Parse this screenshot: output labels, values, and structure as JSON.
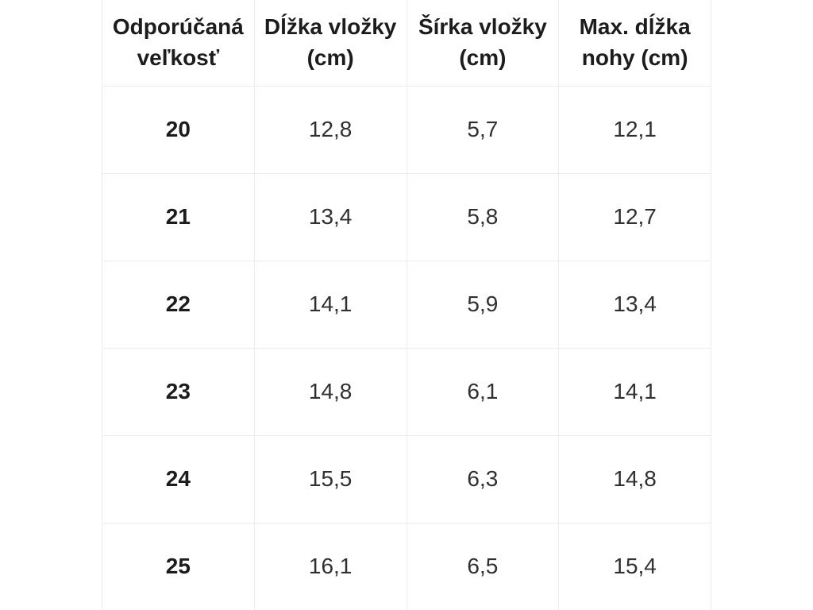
{
  "page": {
    "background": "#ffffff"
  },
  "colors": {
    "border": "#ececec",
    "header_text": "#1c1c1c",
    "cell_text": "#303030",
    "background": "#ffffff"
  },
  "size_chart": {
    "columns": [
      "Odporúčaná veľkosť",
      "Dĺžka vložky (cm)",
      "Šírka vložky (cm)",
      "Max. dĺžka nohy (cm)"
    ],
    "rows": [
      [
        "20",
        "12,8",
        "5,7",
        "12,1"
      ],
      [
        "21",
        "13,4",
        "5,8",
        "12,7"
      ],
      [
        "22",
        "14,1",
        "5,9",
        "13,4"
      ],
      [
        "23",
        "14,8",
        "6,1",
        "14,1"
      ],
      [
        "24",
        "15,5",
        "6,3",
        "14,8"
      ],
      [
        "25",
        "16,1",
        "6,5",
        "15,4"
      ]
    ]
  },
  "chart_data": {
    "type": "table",
    "title": "",
    "columns": [
      "Odporúčaná veľkosť",
      "Dĺžka vložky (cm)",
      "Šírka vložky (cm)",
      "Max. dĺžka nohy (cm)"
    ],
    "categories": [
      "20",
      "21",
      "22",
      "23",
      "24",
      "25"
    ],
    "series": [
      {
        "name": "Dĺžka vložky (cm)",
        "values": [
          12.8,
          13.4,
          14.1,
          14.8,
          15.5,
          16.1
        ]
      },
      {
        "name": "Šírka vložky (cm)",
        "values": [
          5.7,
          5.8,
          5.9,
          6.1,
          6.3,
          6.5
        ]
      },
      {
        "name": "Max. dĺžka nohy (cm)",
        "values": [
          12.1,
          12.7,
          13.4,
          14.1,
          14.8,
          15.4
        ]
      }
    ],
    "decimal_separator": ",",
    "layout": {
      "grid": true,
      "equal_columns": 4,
      "header_bold": true,
      "first_column_bold": true
    }
  }
}
